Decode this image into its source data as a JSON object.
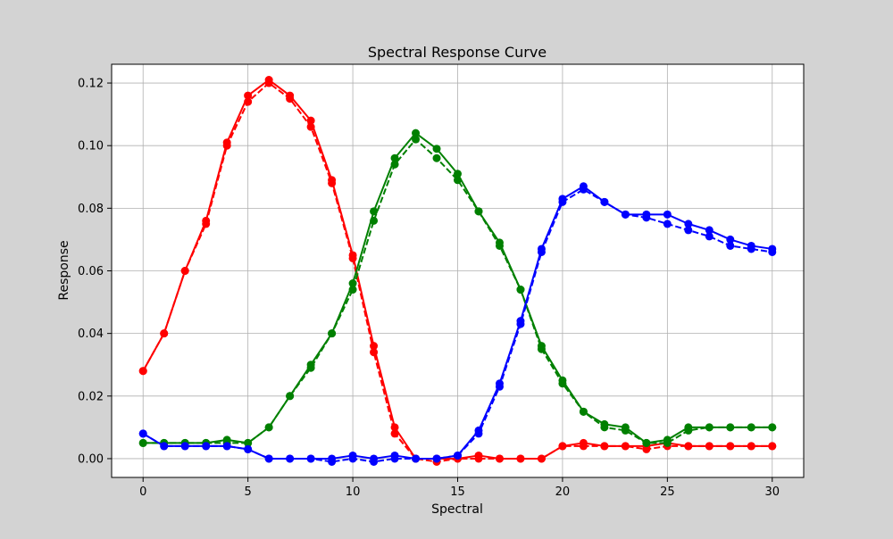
{
  "chart_data": {
    "type": "line",
    "title": "Spectral Response Curve",
    "xlabel": "Spectral",
    "ylabel": "Response",
    "xlim": [
      -1.5,
      31.5
    ],
    "ylim": [
      -0.006,
      0.126
    ],
    "grid": true,
    "x_ticks": [
      0,
      5,
      10,
      15,
      20,
      25,
      30
    ],
    "x_tick_labels": [
      "0",
      "5",
      "10",
      "15",
      "20",
      "25",
      "30"
    ],
    "y_ticks": [
      0.0,
      0.02,
      0.04,
      0.06,
      0.08,
      0.1,
      0.12
    ],
    "y_tick_labels": [
      "0.00",
      "0.02",
      "0.04",
      "0.06",
      "0.08",
      "0.10",
      "0.12"
    ],
    "x": [
      0,
      1,
      2,
      3,
      4,
      5,
      6,
      7,
      8,
      9,
      10,
      11,
      12,
      13,
      14,
      15,
      16,
      17,
      18,
      19,
      20,
      21,
      22,
      23,
      24,
      25,
      26,
      27,
      28,
      29,
      30
    ],
    "series": [
      {
        "color": "#ff0000",
        "linestyle": "solid",
        "values": [
          0.028,
          0.04,
          0.06,
          0.076,
          0.101,
          0.116,
          0.121,
          0.116,
          0.108,
          0.089,
          0.065,
          0.036,
          0.01,
          0.0,
          0.0,
          0.0,
          0.001,
          0.0,
          0.0,
          0.0,
          0.004,
          0.005,
          0.004,
          0.004,
          0.004,
          0.005,
          0.004,
          0.004,
          0.004,
          0.004,
          0.004
        ]
      },
      {
        "color": "#ff0000",
        "linestyle": "dashed",
        "values": [
          0.028,
          0.04,
          0.06,
          0.075,
          0.1,
          0.114,
          0.12,
          0.115,
          0.106,
          0.088,
          0.064,
          0.034,
          0.008,
          0.0,
          -0.001,
          0.0,
          0.0,
          0.0,
          0.0,
          0.0,
          0.004,
          0.004,
          0.004,
          0.004,
          0.003,
          0.004,
          0.004,
          0.004,
          0.004,
          0.004,
          0.004
        ]
      },
      {
        "color": "#008000",
        "linestyle": "solid",
        "values": [
          0.005,
          0.005,
          0.005,
          0.005,
          0.006,
          0.005,
          0.01,
          0.02,
          0.03,
          0.04,
          0.056,
          0.079,
          0.096,
          0.104,
          0.099,
          0.091,
          0.079,
          0.069,
          0.054,
          0.036,
          0.025,
          0.015,
          0.011,
          0.01,
          0.005,
          0.006,
          0.01,
          0.01,
          0.01,
          0.01,
          0.01
        ]
      },
      {
        "color": "#008000",
        "linestyle": "dashed",
        "values": [
          0.005,
          0.005,
          0.005,
          0.005,
          0.005,
          0.005,
          0.01,
          0.02,
          0.029,
          0.04,
          0.054,
          0.076,
          0.094,
          0.102,
          0.096,
          0.089,
          0.079,
          0.068,
          0.054,
          0.035,
          0.024,
          0.015,
          0.01,
          0.009,
          0.005,
          0.005,
          0.009,
          0.01,
          0.01,
          0.01,
          0.01
        ]
      },
      {
        "color": "#0000ff",
        "linestyle": "solid",
        "values": [
          0.008,
          0.004,
          0.004,
          0.004,
          0.004,
          0.003,
          0.0,
          0.0,
          0.0,
          0.0,
          0.001,
          0.0,
          0.001,
          0.0,
          0.0,
          0.001,
          0.009,
          0.024,
          0.044,
          0.067,
          0.083,
          0.087,
          0.082,
          0.078,
          0.078,
          0.078,
          0.075,
          0.073,
          0.07,
          0.068,
          0.067
        ]
      },
      {
        "color": "#0000ff",
        "linestyle": "dashed",
        "values": [
          0.008,
          0.004,
          0.004,
          0.004,
          0.004,
          0.003,
          0.0,
          0.0,
          0.0,
          -0.001,
          0.0,
          -0.001,
          0.0,
          0.0,
          0.0,
          0.001,
          0.008,
          0.023,
          0.043,
          0.066,
          0.082,
          0.086,
          0.082,
          0.078,
          0.077,
          0.075,
          0.073,
          0.071,
          0.068,
          0.067,
          0.066
        ]
      }
    ]
  }
}
